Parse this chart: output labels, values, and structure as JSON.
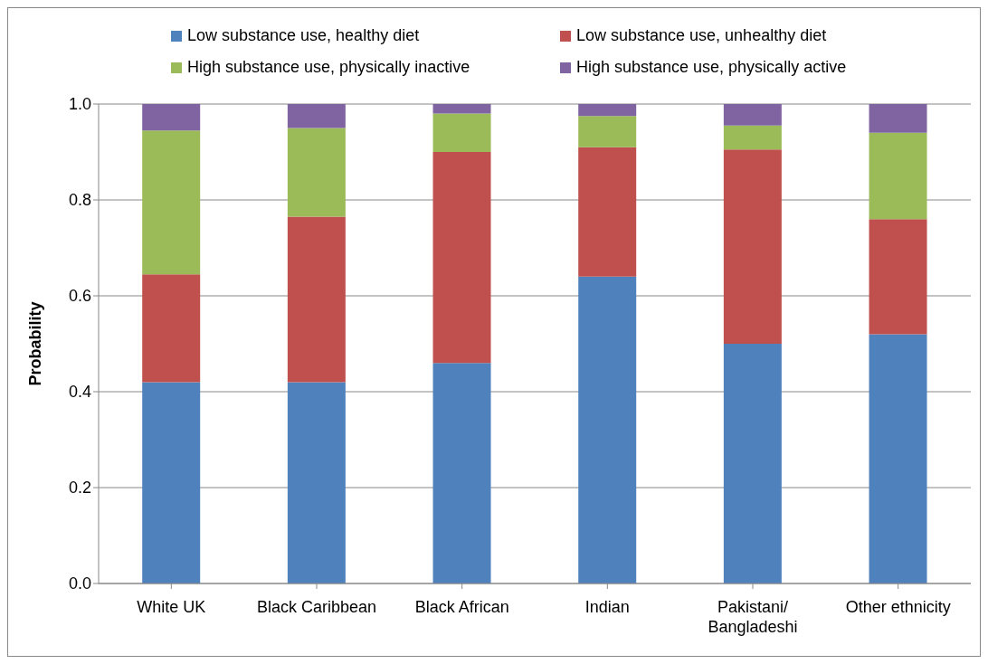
{
  "chart_data": {
    "type": "bar",
    "stacked": true,
    "ylabel": "Probability",
    "categories": [
      "White UK",
      "Black Caribbean",
      "Black African",
      "Indian",
      "Pakistani/ Bangladeshi",
      "Other ethnicity"
    ],
    "series": [
      {
        "name": "Low substance use, healthy diet",
        "color": "#4f81bd",
        "values": [
          0.42,
          0.42,
          0.46,
          0.64,
          0.5,
          0.52
        ]
      },
      {
        "name": "Low substance use, unhealthy diet",
        "color": "#c0504d",
        "values": [
          0.225,
          0.345,
          0.44,
          0.27,
          0.405,
          0.24
        ]
      },
      {
        "name": "High substance use, physically inactive",
        "color": "#9bbb59",
        "values": [
          0.3,
          0.185,
          0.08,
          0.065,
          0.05,
          0.18
        ]
      },
      {
        "name": "High substance use, physically active",
        "color": "#8064a2",
        "values": [
          0.055,
          0.05,
          0.02,
          0.025,
          0.045,
          0.06
        ]
      }
    ],
    "ylim": [
      0,
      1
    ],
    "yticks": [
      {
        "value": 0,
        "label": "0.0"
      },
      {
        "value": 0.2,
        "label": "0.2"
      },
      {
        "value": 0.4,
        "label": "0.4"
      },
      {
        "value": 0.6,
        "label": "0.6"
      },
      {
        "value": 0.8,
        "label": "0.8"
      },
      {
        "value": 1,
        "label": "1.0"
      }
    ],
    "grid": "y",
    "legend": "top"
  }
}
